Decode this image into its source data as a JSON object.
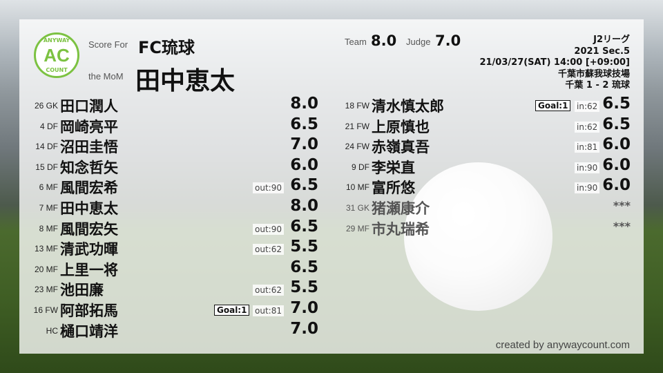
{
  "header": {
    "logo_top": "ANYWAY",
    "logo_mid": "AC",
    "logo_bottom": "COUNT",
    "score_for_label": "Score For",
    "club": "FC琉球",
    "mom_label": "the MoM",
    "mom": "田中恵太",
    "team_label": "Team",
    "team_score": "8.0",
    "judge_label": "Judge",
    "judge_score": "7.0"
  },
  "match": {
    "league": "J2リーグ",
    "section": "2021 Sec.5",
    "datetime": "21/03/27(SAT) 14:00 [+09:00]",
    "venue": "千葉市蘇我球技場",
    "result": "千葉 1 - 2 琉球"
  },
  "starters": [
    {
      "num": "26",
      "pos": "GK",
      "name": "田口潤人",
      "score": "8.0"
    },
    {
      "num": "4",
      "pos": "DF",
      "name": "岡崎亮平",
      "score": "6.5"
    },
    {
      "num": "14",
      "pos": "DF",
      "name": "沼田圭悟",
      "score": "7.0"
    },
    {
      "num": "15",
      "pos": "DF",
      "name": "知念哲矢",
      "score": "6.0"
    },
    {
      "num": "6",
      "pos": "MF",
      "name": "風間宏希",
      "score": "6.5",
      "sub": "out:90"
    },
    {
      "num": "7",
      "pos": "MF",
      "name": "田中恵太",
      "score": "8.0"
    },
    {
      "num": "8",
      "pos": "MF",
      "name": "風間宏矢",
      "score": "6.5",
      "sub": "out:90"
    },
    {
      "num": "13",
      "pos": "MF",
      "name": "清武功暉",
      "score": "5.5",
      "sub": "out:62"
    },
    {
      "num": "20",
      "pos": "MF",
      "name": "上里一将",
      "score": "6.5"
    },
    {
      "num": "23",
      "pos": "MF",
      "name": "池田廉",
      "score": "5.5",
      "sub": "out:62"
    },
    {
      "num": "16",
      "pos": "FW",
      "name": "阿部拓馬",
      "score": "7.0",
      "sub": "out:81",
      "goal": "Goal:1"
    },
    {
      "num": "",
      "pos": "HC",
      "name": "樋口靖洋",
      "score": "7.0"
    }
  ],
  "subs": [
    {
      "num": "18",
      "pos": "FW",
      "name": "清水慎太郎",
      "score": "6.5",
      "sub": "in:62",
      "goal": "Goal:1"
    },
    {
      "num": "21",
      "pos": "FW",
      "name": "上原慎也",
      "score": "6.5",
      "sub": "in:62"
    },
    {
      "num": "24",
      "pos": "FW",
      "name": "赤嶺真吾",
      "score": "6.0",
      "sub": "in:81"
    },
    {
      "num": "9",
      "pos": "DF",
      "name": "李栄直",
      "score": "6.0",
      "sub": "in:90"
    },
    {
      "num": "10",
      "pos": "MF",
      "name": "富所悠",
      "score": "6.0",
      "sub": "in:90"
    },
    {
      "num": "31",
      "pos": "GK",
      "name": "猪瀬康介",
      "score": "***",
      "unused": true
    },
    {
      "num": "29",
      "pos": "MF",
      "name": "市丸瑞希",
      "score": "***",
      "unused": true
    }
  ],
  "footer": {
    "credit": "created by anywaycount.com"
  },
  "colors": {
    "brand": "#7cc242"
  }
}
